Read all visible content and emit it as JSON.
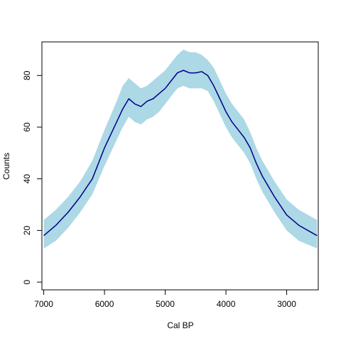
{
  "chart_data": {
    "type": "area",
    "title": "",
    "xlabel": "Cal BP",
    "ylabel": "Counts",
    "x_reversed": true,
    "xlim": [
      7030,
      2480
    ],
    "ylim": [
      -3,
      93
    ],
    "x_ticks": [
      7000,
      6000,
      5000,
      4000,
      3000
    ],
    "y_ticks": [
      0,
      20,
      40,
      60,
      80
    ],
    "grid": false,
    "legend": "none",
    "colors": {
      "band": "#add8e6",
      "line": "#00008b"
    },
    "series": [
      {
        "kind": "line",
        "x": [
          7000,
          6800,
          6600,
          6400,
          6200,
          6000,
          5800,
          5700,
          5600,
          5500,
          5400,
          5300,
          5200,
          5100,
          5000,
          4900,
          4800,
          4700,
          4600,
          4500,
          4400,
          4300,
          4200,
          4100,
          4000,
          3900,
          3800,
          3700,
          3600,
          3500,
          3400,
          3200,
          3000,
          2800,
          2500
        ],
        "y": [
          18,
          22,
          27,
          33,
          40,
          52,
          62,
          67,
          71,
          69,
          68,
          70,
          71,
          73,
          75,
          78,
          81,
          82,
          81,
          81,
          81.5,
          80,
          76,
          71,
          66,
          62,
          59,
          56,
          52,
          46,
          41,
          33,
          26,
          22,
          18
        ]
      },
      {
        "kind": "band",
        "x": [
          7000,
          6800,
          6600,
          6400,
          6200,
          6000,
          5800,
          5700,
          5600,
          5500,
          5400,
          5300,
          5200,
          5100,
          5000,
          4900,
          4800,
          4700,
          4600,
          4500,
          4400,
          4300,
          4200,
          4100,
          4000,
          3900,
          3800,
          3700,
          3600,
          3500,
          3400,
          3200,
          3000,
          2800,
          2500
        ],
        "upper": [
          24,
          28,
          33,
          39,
          47,
          59,
          70,
          76,
          79,
          77,
          75,
          76,
          78,
          80,
          82,
          85,
          88,
          90,
          89,
          89,
          88,
          86,
          83,
          78,
          73,
          69,
          66,
          63,
          58,
          52,
          47,
          39,
          32,
          28,
          24
        ],
        "lower": [
          13,
          16,
          21,
          27,
          34,
          45,
          55,
          60,
          64,
          62,
          61,
          63,
          64,
          66,
          69,
          72,
          75,
          76,
          75,
          75,
          75,
          74,
          70,
          65,
          60,
          56,
          53,
          50,
          46,
          40,
          35,
          27,
          20,
          16,
          13
        ]
      }
    ]
  }
}
